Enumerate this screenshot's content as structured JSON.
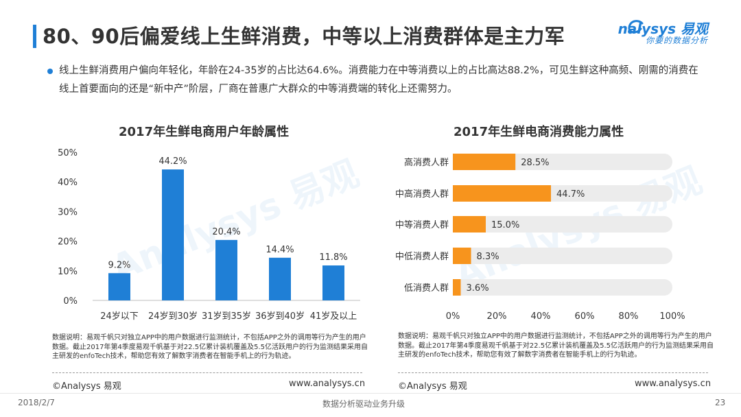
{
  "page": {
    "title": "80、90后偏爱线上生鲜消费，中等以上消费群体是主力军",
    "summary": "线上生鲜消费用户偏向年轻化，年龄在24-35岁的占比达64.6%。消费能力在中等消费以上的占比高达88.2%，可见生鲜这种高频、刚需的消费在线上首要面向的还是“新中产”阶层，厂商在普惠广大群众的中等消费端的转化上还需努力。"
  },
  "logo": {
    "main": "nalysys 易观",
    "sub": "你要的数据分析"
  },
  "watermark": {
    "text": "Analysys 易观"
  },
  "chart_data": [
    {
      "type": "bar",
      "title": "2017年生鲜电商用户年龄属性",
      "categories": [
        "24岁以下",
        "24岁到30岁",
        "31岁到35岁",
        "36岁到40岁",
        "41岁及以上"
      ],
      "values": [
        9.2,
        44.2,
        20.4,
        14.4,
        11.8
      ],
      "value_labels": [
        "9.2%",
        "44.2%",
        "20.4%",
        "14.4%",
        "11.8%"
      ],
      "yticks": [
        0,
        10,
        20,
        30,
        40,
        50
      ],
      "ytick_labels": [
        "0%",
        "10%",
        "20%",
        "30%",
        "40%",
        "50%"
      ],
      "ylim": [
        0,
        50
      ],
      "xlabel": "",
      "ylabel": "",
      "color": "#1f7fd6"
    },
    {
      "type": "bar",
      "orientation": "horizontal",
      "title": "2017年生鲜电商消费能力属性",
      "categories": [
        "高消费人群",
        "中高消费人群",
        "中等消费人群",
        "中低消费人群",
        "低消费人群"
      ],
      "values": [
        28.5,
        44.7,
        15.0,
        8.3,
        3.6
      ],
      "value_labels": [
        "28.5%",
        "44.7%",
        "15.0%",
        "8.3%",
        "3.6%"
      ],
      "xticks": [
        0,
        20,
        40,
        60,
        80,
        100
      ],
      "xtick_labels": [
        "0%",
        "20%",
        "40%",
        "60%",
        "80%",
        "100%"
      ],
      "xlim": [
        0,
        100
      ],
      "xlabel": "",
      "ylabel": "",
      "color": "#f7941d",
      "track_color": "#ececec"
    }
  ],
  "notes": {
    "left": "数据说明：易观千帆只对独立APP中的用户数据进行监测统计，不包括APP之外的调用等行为产生的用户数据。截止2017年第4季度易观千帆基于对22.5亿累计装机覆盖及5.5亿活跃用户的行为监测结果采用自主研发的enfoTech技术，帮助您有效了解数字消费者在智能手机上的行为轨迹。",
    "right": "数据说明：易观千帆只对独立APP中的用户数据进行监测统计，不包括APP之外的调用等行为产生的用户数据。截止2017年第4季度易观千帆基于对22.5亿累计装机覆盖及5.5亿活跃用户的行为监测结果采用自主研发的enfoTech技术，帮助您有效了解数字消费者在智能手机上的行为轨迹。"
  },
  "source": {
    "copyright": "©Analysys 易观",
    "website": "www.analysys.cn"
  },
  "footer": {
    "date": "2018/2/7",
    "slogan": "数据分析驱动业务升级",
    "page_number": "23"
  }
}
